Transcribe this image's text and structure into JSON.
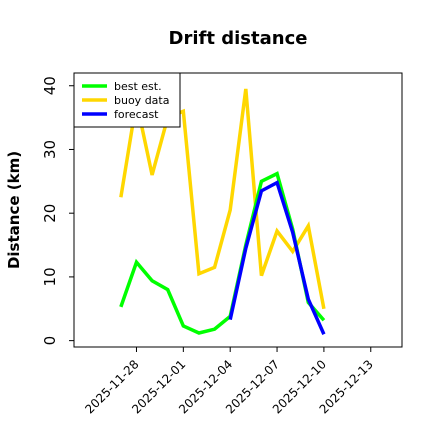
{
  "chart_data": {
    "type": "line",
    "title": "Drift distance",
    "xlabel": "",
    "ylabel": "Distance (km)",
    "x_type": "date",
    "xlim": [
      "2025-11-24",
      "2025-12-15"
    ],
    "ylim": [
      -1,
      42
    ],
    "yticks": [
      0,
      10,
      20,
      30,
      40
    ],
    "xticks": [
      {
        "date": "2025-11-28",
        "label": "2025-11-28",
        "color": "#000000"
      },
      {
        "date": "2025-12-01",
        "label": "2025-12-01",
        "color": "#000000"
      },
      {
        "date": "2025-12-04",
        "label": "2025-12-04",
        "color": "#228B22"
      },
      {
        "date": "2025-12-07",
        "label": "2025-12-07",
        "color": "#000000"
      },
      {
        "date": "2025-12-10",
        "label": "2025-12-10",
        "color": "#000000"
      },
      {
        "date": "2025-12-13",
        "label": "2025-12-13",
        "color": "#000000"
      }
    ],
    "grid": false,
    "legend_position": "top-left",
    "series": [
      {
        "name": "buoy data",
        "color": "#FFD700",
        "points": [
          {
            "x": "2025-11-27",
            "y": 22.5
          },
          {
            "x": "2025-11-28",
            "y": 37.5
          },
          {
            "x": "2025-11-29",
            "y": 26.0
          },
          {
            "x": "2025-11-30",
            "y": 35.0
          },
          {
            "x": "2025-12-01",
            "y": 36.0
          },
          {
            "x": "2025-12-02",
            "y": 10.5
          },
          {
            "x": "2025-12-03",
            "y": 11.5
          },
          {
            "x": "2025-12-04",
            "y": 20.5
          },
          {
            "x": "2025-12-05",
            "y": 39.5
          },
          {
            "x": "2025-12-06",
            "y": 10.2
          },
          {
            "x": "2025-12-07",
            "y": 17.2
          },
          {
            "x": "2025-12-08",
            "y": 14.0
          },
          {
            "x": "2025-12-09",
            "y": 18.0
          },
          {
            "x": "2025-12-10",
            "y": 5.0
          }
        ]
      },
      {
        "name": "best est.",
        "color": "#00FF00",
        "points": [
          {
            "x": "2025-11-27",
            "y": 5.3
          },
          {
            "x": "2025-11-28",
            "y": 12.3
          },
          {
            "x": "2025-11-29",
            "y": 9.4
          },
          {
            "x": "2025-11-30",
            "y": 8.0
          },
          {
            "x": "2025-12-01",
            "y": 2.3
          },
          {
            "x": "2025-12-02",
            "y": 1.2
          },
          {
            "x": "2025-12-03",
            "y": 1.8
          },
          {
            "x": "2025-12-04",
            "y": 3.8
          },
          {
            "x": "2025-12-05",
            "y": 15.0
          },
          {
            "x": "2025-12-06",
            "y": 25.0
          },
          {
            "x": "2025-12-07",
            "y": 26.2
          },
          {
            "x": "2025-12-08",
            "y": 17.5
          },
          {
            "x": "2025-12-09",
            "y": 6.0
          },
          {
            "x": "2025-12-10",
            "y": 3.2
          }
        ]
      },
      {
        "name": "forecast",
        "color": "#0000FF",
        "points": [
          {
            "x": "2025-12-04",
            "y": 3.3
          },
          {
            "x": "2025-12-05",
            "y": 14.5
          },
          {
            "x": "2025-12-06",
            "y": 23.5
          },
          {
            "x": "2025-12-07",
            "y": 24.8
          },
          {
            "x": "2025-12-08",
            "y": 17.0
          },
          {
            "x": "2025-12-09",
            "y": 6.5
          },
          {
            "x": "2025-12-10",
            "y": 1.0
          }
        ]
      }
    ],
    "legend_order": [
      "best est.",
      "buoy data",
      "forecast"
    ]
  }
}
